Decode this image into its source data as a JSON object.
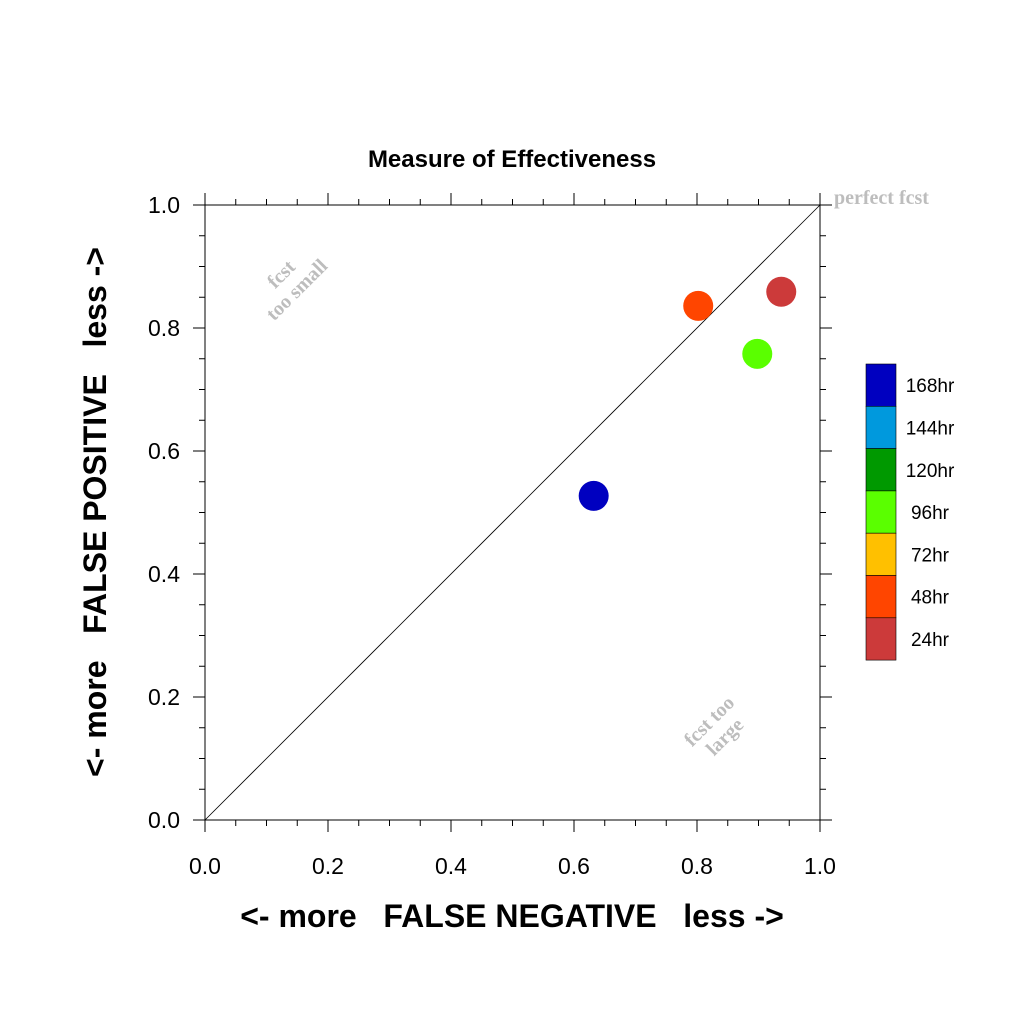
{
  "chart_data": {
    "type": "scatter",
    "title": "Measure of Effectiveness",
    "xlabel": "<- more   FALSE NEGATIVE   less ->",
    "ylabel": "<- more   FALSE POSITIVE   less ->",
    "xlim": [
      0.0,
      1.0
    ],
    "ylim": [
      0.0,
      1.0
    ],
    "x_ticks": [
      "0.0",
      "0.2",
      "0.4",
      "0.6",
      "0.8",
      "1.0"
    ],
    "y_ticks": [
      "0.0",
      "0.2",
      "0.4",
      "0.6",
      "0.8",
      "1.0"
    ],
    "grid": false,
    "reference_line": "diagonal y = x",
    "annotations": {
      "perfect": "perfect fcst",
      "small_line1": "fcst",
      "small_line2": "too small",
      "large_line1": "fcst too",
      "large_line2": "large"
    },
    "points": [
      {
        "label": "168hr",
        "x": 0.632,
        "y": 0.527,
        "color": "#0000c0"
      },
      {
        "label": "96hr",
        "x": 0.898,
        "y": 0.758,
        "color": "#5aff00"
      },
      {
        "label": "48hr",
        "x": 0.802,
        "y": 0.836,
        "color": "#ff4500"
      },
      {
        "label": "24hr",
        "x": 0.937,
        "y": 0.859,
        "color": "#cc3a3a"
      }
    ],
    "legend": {
      "position": "right",
      "entries": [
        {
          "label": "168hr",
          "color": "#0000c0"
        },
        {
          "label": "144hr",
          "color": "#0099dd"
        },
        {
          "label": "120hr",
          "color": "#009900"
        },
        {
          "label": "96hr",
          "color": "#5aff00"
        },
        {
          "label": "72hr",
          "color": "#ffc000"
        },
        {
          "label": "48hr",
          "color": "#ff4500"
        },
        {
          "label": "24hr",
          "color": "#cc3a3a"
        }
      ]
    }
  }
}
